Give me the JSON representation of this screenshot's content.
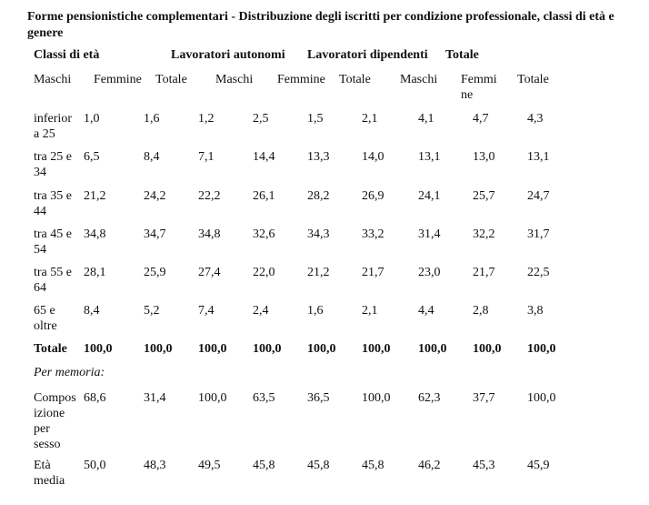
{
  "title": "Forme pensionistiche complementari - Distribuzione degli iscritti per condizione professionale, classi di età e genere",
  "header": {
    "group_labels": [
      "Classi di età",
      "Lavoratori autonomi",
      "Lavoratori dipendenti",
      "Totale"
    ],
    "sub_labels": [
      "Maschi",
      "Femmine",
      "Totale",
      "Maschi",
      "Femmine",
      "Totale",
      "Maschi",
      "Femmine",
      "Totale"
    ]
  },
  "rows": [
    {
      "label": "inferior a 25",
      "values": [
        "1,0",
        "1,6",
        "1,2",
        "2,5",
        "1,5",
        "2,1",
        "4,1",
        "4,7",
        "4,3"
      ]
    },
    {
      "label": "tra 25 e 34",
      "values": [
        "6,5",
        "8,4",
        "7,1",
        "14,4",
        "13,3",
        "14,0",
        "13,1",
        "13,0",
        "13,1"
      ]
    },
    {
      "label": "tra 35 e 44",
      "values": [
        "21,2",
        "24,2",
        "22,2",
        "26,1",
        "28,2",
        "26,9",
        "24,1",
        "25,7",
        "24,7"
      ]
    },
    {
      "label": "tra 45 e 54",
      "values": [
        "34,8",
        "34,7",
        "34,8",
        "32,6",
        "34,3",
        "33,2",
        "31,4",
        "32,2",
        "31,7"
      ]
    },
    {
      "label": "tra 55 e 64",
      "values": [
        "28,1",
        "25,9",
        "27,4",
        "22,0",
        "21,2",
        "21,7",
        "23,0",
        "21,7",
        "22,5"
      ]
    },
    {
      "label": "65 e oltre",
      "values": [
        "8,4",
        "5,2",
        "7,4",
        "2,4",
        "1,6",
        "2,1",
        "4,4",
        "2,8",
        "3,8"
      ]
    }
  ],
  "total_row": {
    "label": "Totale",
    "values": [
      "100,0",
      "100,0",
      "100,0",
      "100,0",
      "100,0",
      "100,0",
      "100,0",
      "100,0",
      "100,0"
    ]
  },
  "note": "Per memoria:",
  "memo_rows": [
    {
      "label": "Composizione per sesso",
      "values": [
        "68,6",
        "31,4",
        "100,0",
        "63,5",
        "36,5",
        "100,0",
        "62,3",
        "37,7",
        "100,0"
      ]
    },
    {
      "label": "Età media",
      "values": [
        "50,0",
        "48,3",
        "49,5",
        "45,8",
        "45,8",
        "45,8",
        "46,2",
        "45,3",
        "45,9"
      ]
    }
  ]
}
